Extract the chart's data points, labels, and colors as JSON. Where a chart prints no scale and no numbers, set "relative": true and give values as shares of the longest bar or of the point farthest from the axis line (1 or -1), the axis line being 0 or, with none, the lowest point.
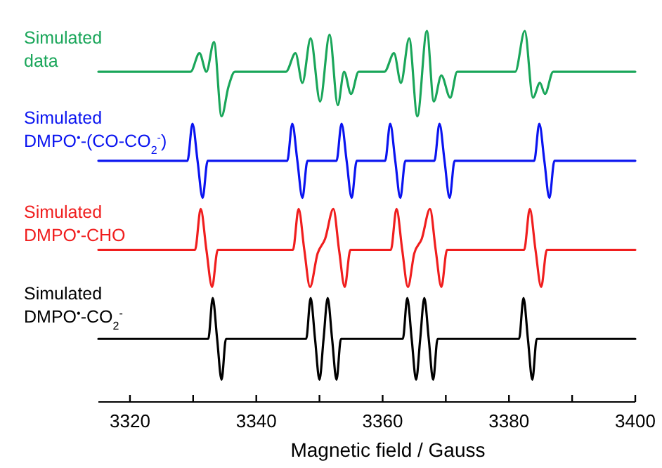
{
  "chart_data": {
    "type": "line",
    "relative": true,
    "xlim": [
      3315,
      3400
    ],
    "xlabel": "Magnetic field / Gauss",
    "xticks": [
      3320,
      {
        "value": 3330,
        "label": null
      },
      3340,
      {
        "value": 3350,
        "label": null
      },
      3360,
      {
        "value": 3370,
        "label": null
      },
      3380,
      {
        "value": 3390,
        "label": null
      },
      3400
    ],
    "series": [
      {
        "name": "Simulated\ndata",
        "color": "#1aa65a",
        "x": [
          3315,
          3329.6,
          3331.0,
          3332.1,
          3333.3,
          3334.5,
          3335.6,
          3336.6,
          3344.7,
          3346.2,
          3347.3,
          3348.6,
          3350.1,
          3351.6,
          3352.9,
          3353.9,
          3355.0,
          3356.2,
          3360.3,
          3361.8,
          3362.9,
          3364.2,
          3365.5,
          3367.0,
          3368.1,
          3369.3,
          3370.7,
          3371.8,
          3381.0,
          3382.5,
          3383.8,
          3384.9,
          3385.7,
          3387.0,
          3400
        ],
        "values": [
          0.89,
          0.89,
          0.94,
          0.89,
          0.97,
          0.77,
          0.85,
          0.89,
          0.89,
          0.94,
          0.86,
          0.98,
          0.81,
          0.99,
          0.8,
          0.89,
          0.83,
          0.89,
          0.89,
          0.94,
          0.86,
          0.98,
          0.77,
          1,
          0.81,
          0.88,
          0.82,
          0.89,
          0.89,
          1,
          0.82,
          0.86,
          0.83,
          0.89,
          0.89
        ]
      },
      {
        "name": "Simulated\nDMPO$^{•}$-(CO-CO$_{2}$$^{-}$)",
        "color": "#0a14f0",
        "x": [
          3315,
          3329.1,
          3329.9,
          3330.7,
          3331.5,
          3332.3,
          3344.9,
          3345.7,
          3346.5,
          3347.3,
          3348.1,
          3352.7,
          3353.5,
          3354.3,
          3355.1,
          3355.9,
          3360.4,
          3361.2,
          3362.0,
          3362.8,
          3363.6,
          3368.2,
          3369.0,
          3369.8,
          3370.6,
          3371.4,
          3384.0,
          3384.8,
          3385.6,
          3386.4,
          3387.2,
          3400
        ],
        "values": [
          0.65,
          0.65,
          0.75,
          0.65,
          0.55,
          0.65,
          0.65,
          0.75,
          0.65,
          0.55,
          0.65,
          0.65,
          0.75,
          0.65,
          0.55,
          0.65,
          0.65,
          0.75,
          0.65,
          0.55,
          0.65,
          0.65,
          0.75,
          0.65,
          0.55,
          0.65,
          0.65,
          0.75,
          0.65,
          0.55,
          0.65,
          0.65
        ]
      },
      {
        "name": "Simulated\nDMPO$^{•}$-CHO",
        "color": "#f01e1e",
        "x": [
          3315,
          3330.3,
          3331.2,
          3332.1,
          3333.0,
          3333.9,
          3345.8,
          3346.7,
          3347.6,
          3348.5,
          3349.7,
          3350.9,
          3352.2,
          3353.1,
          3354.0,
          3354.9,
          3361.3,
          3362.2,
          3363.1,
          3364.0,
          3365.0,
          3366.2,
          3367.5,
          3368.4,
          3369.3,
          3370.2,
          3382.4,
          3383.3,
          3384.2,
          3385.1,
          3386.0,
          3400
        ],
        "values": [
          0.41,
          0.41,
          0.52,
          0.41,
          0.31,
          0.41,
          0.41,
          0.52,
          0.41,
          0.31,
          0.4,
          0.44,
          0.52,
          0.41,
          0.31,
          0.41,
          0.41,
          0.52,
          0.41,
          0.31,
          0.4,
          0.44,
          0.52,
          0.41,
          0.31,
          0.41,
          0.41,
          0.52,
          0.41,
          0.31,
          0.41,
          0.41
        ]
      },
      {
        "name": "Simulated\nDMPO$^{•}$-CO$_{2}$$^{-}$",
        "color": "#000000",
        "x": [
          3315,
          3332.4,
          3333.1,
          3333.8,
          3334.5,
          3335.2,
          3347.9,
          3348.6,
          3349.3,
          3350.0,
          3350.65,
          3351.3,
          3352.0,
          3352.7,
          3353.4,
          3363.2,
          3363.9,
          3364.6,
          3365.3,
          3365.95,
          3366.6,
          3367.3,
          3368.0,
          3368.7,
          3381.6,
          3382.3,
          3383.0,
          3383.7,
          3384.4,
          3400
        ],
        "values": [
          0.17,
          0.17,
          0.28,
          0.17,
          0.06,
          0.17,
          0.17,
          0.28,
          0.17,
          0.06,
          0.17,
          0.28,
          0.17,
          0.06,
          0.17,
          0.17,
          0.28,
          0.17,
          0.06,
          0.17,
          0.28,
          0.17,
          0.06,
          0.17,
          0.17,
          0.28,
          0.17,
          0.06,
          0.17,
          0.17
        ]
      }
    ]
  }
}
